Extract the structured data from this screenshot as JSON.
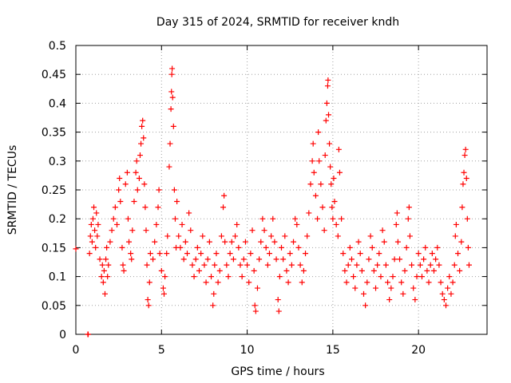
{
  "chart_data": {
    "type": "scatter",
    "title": "Day 315 of 2024, SRMTID for receiver kndh",
    "xlabel": "GPS time / hours",
    "ylabel": "SRMTID / TECUs",
    "xlim": [
      0,
      24
    ],
    "ylim": [
      0,
      0.5
    ],
    "xticks": [
      0,
      5,
      10,
      15,
      20
    ],
    "xtick_labels": [
      "0",
      "5",
      "10",
      "15",
      "20"
    ],
    "yticks": [
      0,
      0.05,
      0.1,
      0.15,
      0.2,
      0.25,
      0.3,
      0.35,
      0.4,
      0.45,
      0.5
    ],
    "ytick_labels": [
      "0",
      "0.05",
      "0.1",
      "0.15",
      "0.2",
      "0.25",
      "0.3",
      "0.35",
      "0.4",
      "0.45",
      "0.5"
    ],
    "grid": true,
    "marker": "+",
    "color": "#ff0000",
    "series": [
      {
        "name": "SRMTID",
        "points": [
          [
            0.0,
            0.148
          ],
          [
            0.7,
            0.0
          ],
          [
            0.72,
            0.0
          ],
          [
            0.8,
            0.14
          ],
          [
            0.85,
            0.17
          ],
          [
            0.9,
            0.19
          ],
          [
            0.95,
            0.16
          ],
          [
            1.0,
            0.2
          ],
          [
            1.05,
            0.22
          ],
          [
            1.1,
            0.18
          ],
          [
            1.15,
            0.15
          ],
          [
            1.2,
            0.21
          ],
          [
            1.25,
            0.17
          ],
          [
            1.3,
            0.19
          ],
          [
            1.4,
            0.13
          ],
          [
            1.5,
            0.1
          ],
          [
            1.55,
            0.12
          ],
          [
            1.6,
            0.09
          ],
          [
            1.65,
            0.11
          ],
          [
            1.7,
            0.07
          ],
          [
            1.75,
            0.13
          ],
          [
            1.8,
            0.15
          ],
          [
            1.85,
            0.1
          ],
          [
            1.9,
            0.12
          ],
          [
            2.0,
            0.16
          ],
          [
            2.1,
            0.18
          ],
          [
            2.2,
            0.2
          ],
          [
            2.3,
            0.22
          ],
          [
            2.4,
            0.19
          ],
          [
            2.5,
            0.25
          ],
          [
            2.55,
            0.27
          ],
          [
            2.6,
            0.23
          ],
          [
            2.7,
            0.15
          ],
          [
            2.75,
            0.12
          ],
          [
            2.8,
            0.11
          ],
          [
            2.9,
            0.26
          ],
          [
            3.0,
            0.28
          ],
          [
            3.05,
            0.2
          ],
          [
            3.1,
            0.16
          ],
          [
            3.2,
            0.14
          ],
          [
            3.25,
            0.13
          ],
          [
            3.3,
            0.18
          ],
          [
            3.4,
            0.23
          ],
          [
            3.5,
            0.28
          ],
          [
            3.55,
            0.3
          ],
          [
            3.6,
            0.25
          ],
          [
            3.7,
            0.27
          ],
          [
            3.75,
            0.31
          ],
          [
            3.8,
            0.33
          ],
          [
            3.85,
            0.36
          ],
          [
            3.9,
            0.37
          ],
          [
            3.95,
            0.34
          ],
          [
            4.0,
            0.26
          ],
          [
            4.05,
            0.22
          ],
          [
            4.1,
            0.18
          ],
          [
            4.15,
            0.12
          ],
          [
            4.2,
            0.06
          ],
          [
            4.25,
            0.05
          ],
          [
            4.3,
            0.09
          ],
          [
            4.35,
            0.14
          ],
          [
            4.5,
            0.13
          ],
          [
            4.6,
            0.16
          ],
          [
            4.7,
            0.19
          ],
          [
            4.8,
            0.22
          ],
          [
            4.85,
            0.25
          ],
          [
            4.9,
            0.14
          ],
          [
            5.0,
            0.11
          ],
          [
            5.1,
            0.08
          ],
          [
            5.15,
            0.07
          ],
          [
            5.2,
            0.1
          ],
          [
            5.3,
            0.14
          ],
          [
            5.35,
            0.17
          ],
          [
            5.45,
            0.29
          ],
          [
            5.5,
            0.33
          ],
          [
            5.55,
            0.39
          ],
          [
            5.58,
            0.42
          ],
          [
            5.6,
            0.45
          ],
          [
            5.62,
            0.46
          ],
          [
            5.65,
            0.41
          ],
          [
            5.7,
            0.36
          ],
          [
            5.75,
            0.25
          ],
          [
            5.8,
            0.2
          ],
          [
            5.85,
            0.15
          ],
          [
            5.9,
            0.23
          ],
          [
            6.0,
            0.17
          ],
          [
            6.1,
            0.15
          ],
          [
            6.2,
            0.19
          ],
          [
            6.3,
            0.13
          ],
          [
            6.4,
            0.16
          ],
          [
            6.5,
            0.14
          ],
          [
            6.6,
            0.21
          ],
          [
            6.7,
            0.18
          ],
          [
            6.8,
            0.12
          ],
          [
            6.9,
            0.1
          ],
          [
            7.0,
            0.13
          ],
          [
            7.1,
            0.15
          ],
          [
            7.2,
            0.11
          ],
          [
            7.3,
            0.14
          ],
          [
            7.4,
            0.17
          ],
          [
            7.5,
            0.12
          ],
          [
            7.6,
            0.09
          ],
          [
            7.7,
            0.13
          ],
          [
            7.8,
            0.16
          ],
          [
            7.9,
            0.1
          ],
          [
            8.0,
            0.05
          ],
          [
            8.05,
            0.07
          ],
          [
            8.1,
            0.12
          ],
          [
            8.2,
            0.14
          ],
          [
            8.3,
            0.09
          ],
          [
            8.4,
            0.11
          ],
          [
            8.5,
            0.17
          ],
          [
            8.6,
            0.22
          ],
          [
            8.65,
            0.24
          ],
          [
            8.7,
            0.16
          ],
          [
            8.8,
            0.12
          ],
          [
            8.9,
            0.1
          ],
          [
            9.0,
            0.14
          ],
          [
            9.1,
            0.16
          ],
          [
            9.2,
            0.13
          ],
          [
            9.3,
            0.17
          ],
          [
            9.4,
            0.19
          ],
          [
            9.5,
            0.15
          ],
          [
            9.6,
            0.12
          ],
          [
            9.7,
            0.1
          ],
          [
            9.8,
            0.13
          ],
          [
            9.9,
            0.16
          ],
          [
            10.0,
            0.12
          ],
          [
            10.1,
            0.09
          ],
          [
            10.2,
            0.14
          ],
          [
            10.3,
            0.18
          ],
          [
            10.4,
            0.11
          ],
          [
            10.45,
            0.05
          ],
          [
            10.5,
            0.04
          ],
          [
            10.6,
            0.08
          ],
          [
            10.7,
            0.13
          ],
          [
            10.8,
            0.16
          ],
          [
            10.9,
            0.2
          ],
          [
            11.0,
            0.18
          ],
          [
            11.1,
            0.15
          ],
          [
            11.2,
            0.12
          ],
          [
            11.3,
            0.14
          ],
          [
            11.4,
            0.17
          ],
          [
            11.5,
            0.2
          ],
          [
            11.6,
            0.16
          ],
          [
            11.7,
            0.13
          ],
          [
            11.8,
            0.06
          ],
          [
            11.85,
            0.04
          ],
          [
            11.9,
            0.1
          ],
          [
            12.0,
            0.15
          ],
          [
            12.1,
            0.13
          ],
          [
            12.2,
            0.17
          ],
          [
            12.3,
            0.11
          ],
          [
            12.4,
            0.09
          ],
          [
            12.5,
            0.14
          ],
          [
            12.6,
            0.12
          ],
          [
            12.7,
            0.16
          ],
          [
            12.8,
            0.2
          ],
          [
            12.9,
            0.19
          ],
          [
            13.0,
            0.15
          ],
          [
            13.1,
            0.12
          ],
          [
            13.2,
            0.09
          ],
          [
            13.3,
            0.11
          ],
          [
            13.4,
            0.14
          ],
          [
            13.5,
            0.17
          ],
          [
            13.6,
            0.21
          ],
          [
            13.7,
            0.26
          ],
          [
            13.8,
            0.3
          ],
          [
            13.85,
            0.33
          ],
          [
            13.9,
            0.28
          ],
          [
            14.0,
            0.24
          ],
          [
            14.1,
            0.2
          ],
          [
            14.15,
            0.35
          ],
          [
            14.2,
            0.3
          ],
          [
            14.3,
            0.26
          ],
          [
            14.4,
            0.22
          ],
          [
            14.5,
            0.18
          ],
          [
            14.55,
            0.31
          ],
          [
            14.6,
            0.37
          ],
          [
            14.65,
            0.4
          ],
          [
            14.7,
            0.43
          ],
          [
            14.72,
            0.44
          ],
          [
            14.75,
            0.38
          ],
          [
            14.8,
            0.33
          ],
          [
            14.85,
            0.29
          ],
          [
            14.9,
            0.26
          ],
          [
            14.95,
            0.22
          ],
          [
            15.0,
            0.2
          ],
          [
            15.05,
            0.27
          ],
          [
            15.1,
            0.23
          ],
          [
            15.2,
            0.19
          ],
          [
            15.3,
            0.17
          ],
          [
            15.35,
            0.32
          ],
          [
            15.4,
            0.28
          ],
          [
            15.5,
            0.2
          ],
          [
            15.6,
            0.14
          ],
          [
            15.7,
            0.11
          ],
          [
            15.8,
            0.09
          ],
          [
            15.9,
            0.12
          ],
          [
            16.0,
            0.15
          ],
          [
            16.1,
            0.13
          ],
          [
            16.2,
            0.1
          ],
          [
            16.3,
            0.08
          ],
          [
            16.4,
            0.12
          ],
          [
            16.5,
            0.16
          ],
          [
            16.6,
            0.14
          ],
          [
            16.7,
            0.11
          ],
          [
            16.8,
            0.07
          ],
          [
            16.9,
            0.05
          ],
          [
            17.0,
            0.09
          ],
          [
            17.1,
            0.13
          ],
          [
            17.2,
            0.17
          ],
          [
            17.3,
            0.15
          ],
          [
            17.4,
            0.11
          ],
          [
            17.5,
            0.08
          ],
          [
            17.6,
            0.12
          ],
          [
            17.7,
            0.14
          ],
          [
            17.8,
            0.1
          ],
          [
            17.9,
            0.18
          ],
          [
            18.0,
            0.16
          ],
          [
            18.1,
            0.12
          ],
          [
            18.2,
            0.09
          ],
          [
            18.3,
            0.06
          ],
          [
            18.4,
            0.08
          ],
          [
            18.5,
            0.1
          ],
          [
            18.6,
            0.13
          ],
          [
            18.7,
            0.19
          ],
          [
            18.75,
            0.21
          ],
          [
            18.8,
            0.16
          ],
          [
            18.9,
            0.13
          ],
          [
            19.0,
            0.09
          ],
          [
            19.1,
            0.07
          ],
          [
            19.2,
            0.11
          ],
          [
            19.3,
            0.15
          ],
          [
            19.4,
            0.2
          ],
          [
            19.45,
            0.22
          ],
          [
            19.5,
            0.17
          ],
          [
            19.6,
            0.12
          ],
          [
            19.7,
            0.08
          ],
          [
            19.8,
            0.06
          ],
          [
            19.9,
            0.1
          ],
          [
            20.0,
            0.14
          ],
          [
            20.1,
            0.12
          ],
          [
            20.2,
            0.1
          ],
          [
            20.3,
            0.13
          ],
          [
            20.4,
            0.15
          ],
          [
            20.5,
            0.11
          ],
          [
            20.6,
            0.09
          ],
          [
            20.7,
            0.12
          ],
          [
            20.8,
            0.14
          ],
          [
            20.9,
            0.11
          ],
          [
            21.0,
            0.13
          ],
          [
            21.1,
            0.15
          ],
          [
            21.2,
            0.12
          ],
          [
            21.3,
            0.09
          ],
          [
            21.4,
            0.07
          ],
          [
            21.5,
            0.06
          ],
          [
            21.6,
            0.05
          ],
          [
            21.7,
            0.08
          ],
          [
            21.8,
            0.1
          ],
          [
            21.9,
            0.07
          ],
          [
            22.0,
            0.09
          ],
          [
            22.1,
            0.12
          ],
          [
            22.15,
            0.17
          ],
          [
            22.2,
            0.19
          ],
          [
            22.3,
            0.14
          ],
          [
            22.4,
            0.11
          ],
          [
            22.5,
            0.16
          ],
          [
            22.55,
            0.22
          ],
          [
            22.6,
            0.26
          ],
          [
            22.65,
            0.28
          ],
          [
            22.7,
            0.31
          ],
          [
            22.75,
            0.32
          ],
          [
            22.8,
            0.27
          ],
          [
            22.85,
            0.2
          ],
          [
            22.9,
            0.15
          ],
          [
            22.95,
            0.12
          ]
        ]
      }
    ]
  }
}
